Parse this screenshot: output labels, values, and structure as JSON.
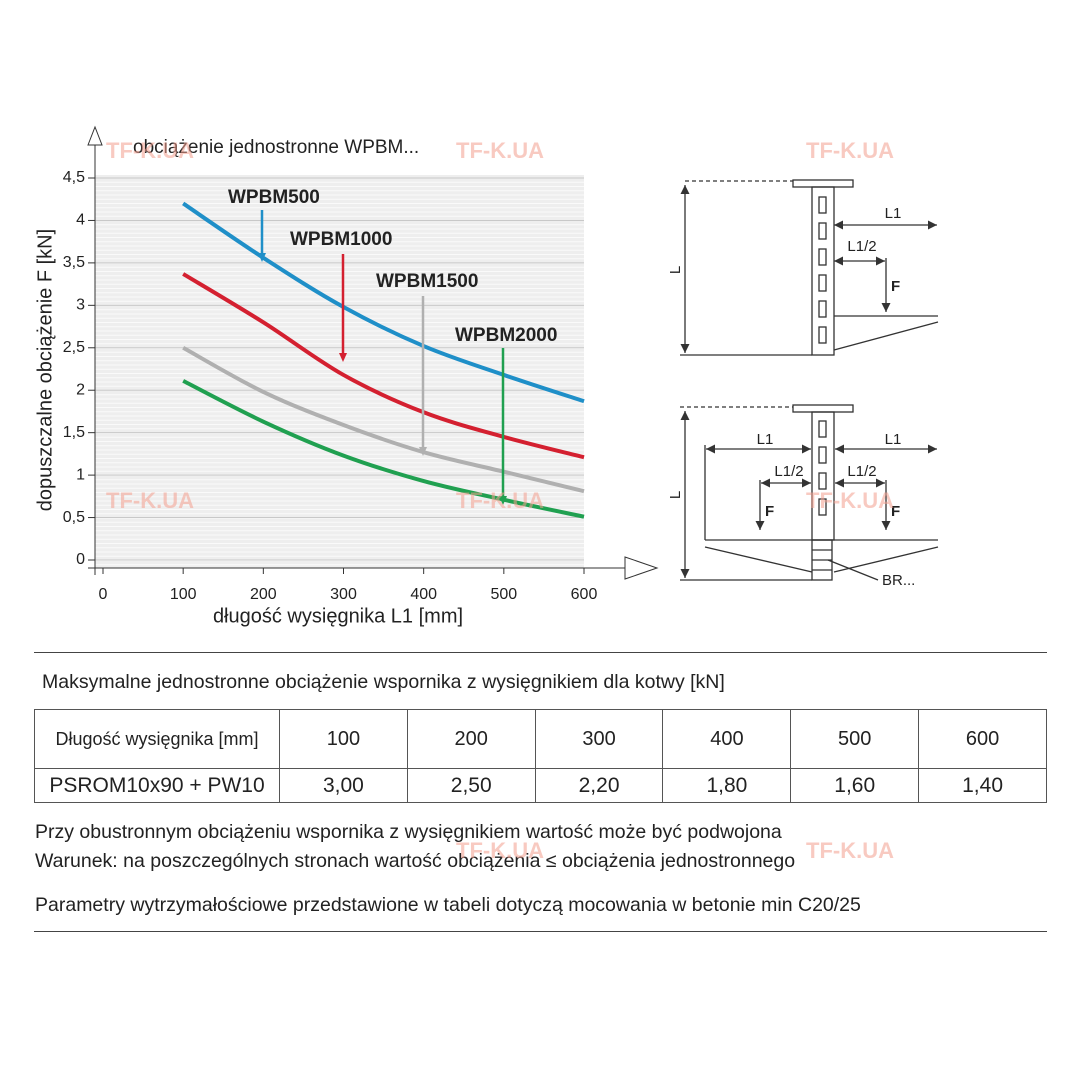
{
  "chart_data": {
    "type": "line",
    "title": "obciążenie jednostronne WPBM...",
    "xlabel": "długość wysięgnika L1 [mm]",
    "ylabel": "dopuszczalne obciążenie F [kN]",
    "x": [
      100,
      200,
      300,
      400,
      500,
      600
    ],
    "series": [
      {
        "name": "WPBM500",
        "color": "#1f8fc8",
        "values": [
          4.2,
          3.56,
          2.98,
          2.52,
          2.18,
          1.87
        ]
      },
      {
        "name": "WPBM1000",
        "color": "#d42030",
        "values": [
          3.37,
          2.8,
          2.18,
          1.74,
          1.45,
          1.21
        ]
      },
      {
        "name": "WPBM1500",
        "color": "#b0b0b0",
        "values": [
          2.5,
          1.98,
          1.59,
          1.27,
          1.04,
          0.81
        ]
      },
      {
        "name": "WPBM2000",
        "color": "#20a050",
        "values": [
          2.11,
          1.63,
          1.23,
          0.93,
          0.71,
          0.51
        ]
      }
    ],
    "xlim": [
      0,
      600
    ],
    "xticks": [
      0,
      100,
      200,
      300,
      400,
      500,
      600
    ],
    "ylim": [
      0,
      4.5
    ],
    "yticks": [
      0,
      {
        "value": 0.5,
        "label": "0,5"
      },
      1,
      {
        "value": 1.5,
        "label": "1,5"
      },
      2,
      {
        "value": 2.5,
        "label": "2,5"
      },
      3,
      {
        "value": 3.5,
        "label": "3,5"
      },
      4,
      {
        "value": 4.5,
        "label": "4,5"
      }
    ],
    "grid": true
  },
  "watermark": "TF-K.UA",
  "diagrams": {
    "top": {
      "length": "L1",
      "half": "L1/2",
      "force": "F",
      "height": "L"
    },
    "bottom": {
      "length_left": "L1",
      "length_right": "L1",
      "half_left": "L1/2",
      "half_right": "L1/2",
      "force_left": "F",
      "force_right": "F",
      "height": "L",
      "bracket": "BR..."
    }
  },
  "table": {
    "caption": "Maksymalne jednostronne obciążenie wspornika z wysięgnikiem dla kotwy [kN]",
    "rows": [
      [
        "Długość wysięgnika [mm]",
        "100",
        "200",
        "300",
        "400",
        "500",
        "600"
      ],
      [
        "PSROM10x90 + PW10",
        "3,00",
        "2,50",
        "2,20",
        "1,80",
        "1,60",
        "1,40"
      ]
    ]
  },
  "notes": [
    "Przy obustronnym obciążeniu wspornika z wysięgnikiem wartość może być podwojona",
    "Warunek: na poszczególnych stronach wartość obciążenia ≤ obciążenia jednostronnego",
    "Parametry wytrzymałościowe przedstawione w tabeli dotyczą mocowania w betonie min C20/25"
  ]
}
